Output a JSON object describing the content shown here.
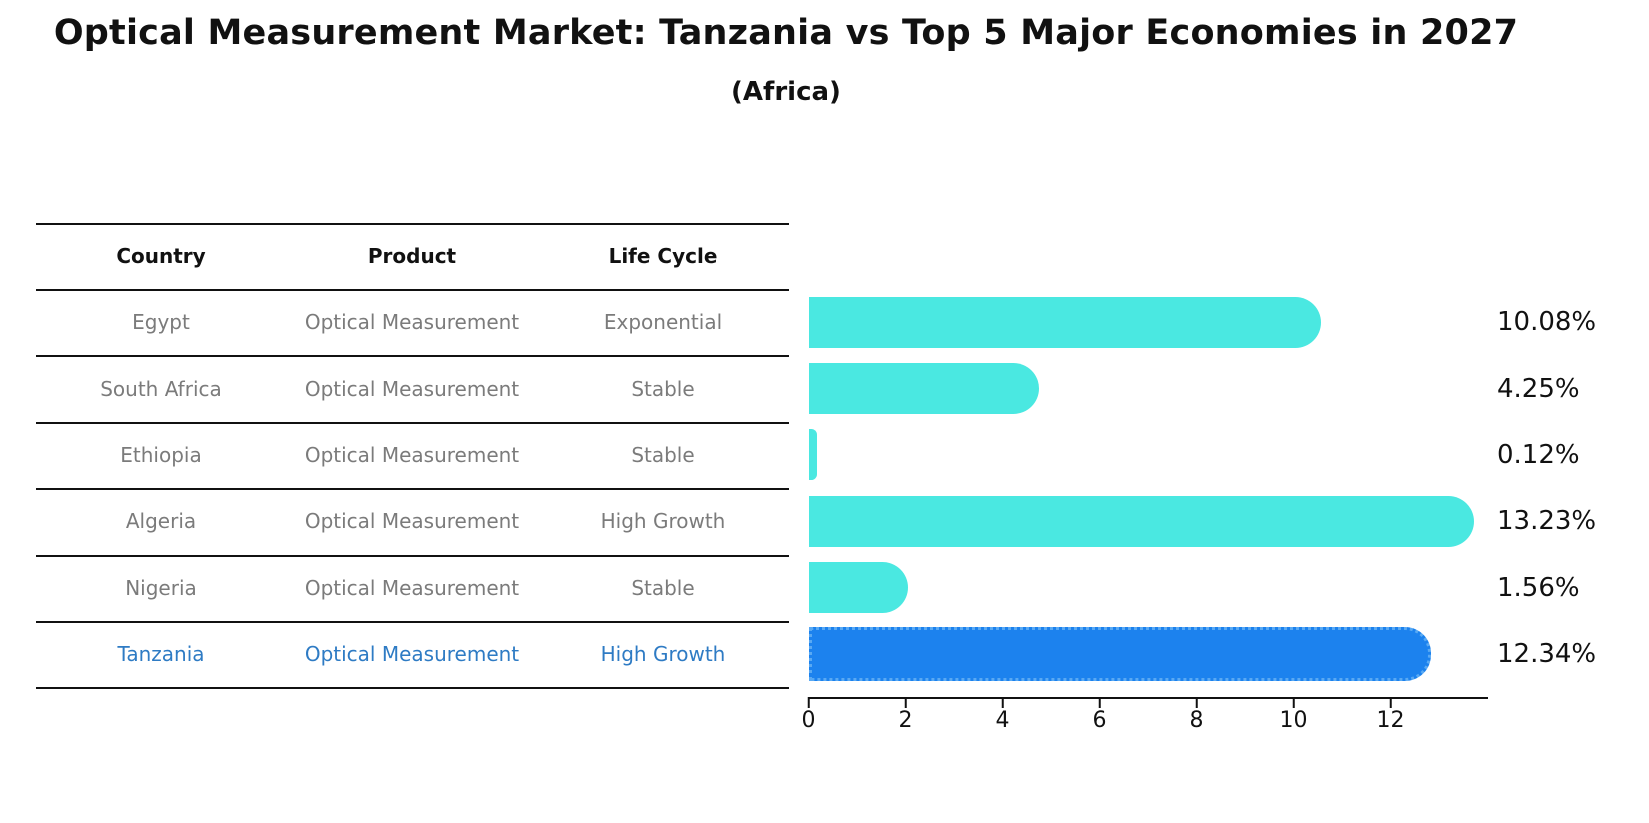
{
  "title": "Optical Measurement Market: Tanzania vs Top 5 Major Economies in 2027",
  "subtitle": "(Africa)",
  "table": {
    "headers": [
      "Country",
      "Product",
      "Life Cycle"
    ],
    "rows": [
      {
        "country": "Egypt",
        "product": "Optical Measurement",
        "life_cycle": "Exponential",
        "highlight": false
      },
      {
        "country": "South Africa",
        "product": "Optical Measurement",
        "life_cycle": "Stable",
        "highlight": false
      },
      {
        "country": "Ethiopia",
        "product": "Optical Measurement",
        "life_cycle": "Stable",
        "highlight": false
      },
      {
        "country": "Algeria",
        "product": "Optical Measurement",
        "life_cycle": "High Growth",
        "highlight": false
      },
      {
        "country": "Nigeria",
        "product": "Optical Measurement",
        "life_cycle": "Stable",
        "highlight": false
      },
      {
        "country": "Tanzania",
        "product": "Optical Measurement",
        "life_cycle": "High Growth",
        "highlight": true
      }
    ]
  },
  "chart_data": {
    "type": "bar",
    "orientation": "horizontal",
    "title": "Optical Measurement Market: Tanzania vs Top 5 Major Economies in 2027",
    "subtitle": "(Africa)",
    "categories": [
      "Egypt",
      "South Africa",
      "Ethiopia",
      "Algeria",
      "Nigeria",
      "Tanzania"
    ],
    "values": [
      10.08,
      4.25,
      0.12,
      13.23,
      1.56,
      12.34
    ],
    "labels": [
      "10.08%",
      "4.25%",
      "0.12%",
      "13.23%",
      "1.56%",
      "12.34%"
    ],
    "x_ticks": [
      0,
      2,
      4,
      6,
      8,
      10,
      12
    ],
    "xlim": [
      0,
      14
    ],
    "unit": "%",
    "grid": false,
    "legend": false,
    "highlight_index": 5
  },
  "colors": {
    "bar": "#4ae8e1",
    "highlight_bar": "#1c82ee",
    "highlight_border": "#59a9f3",
    "highlight_text": "#2e7bc4",
    "table_text": "#7b7b7b",
    "text": "#111111"
  }
}
